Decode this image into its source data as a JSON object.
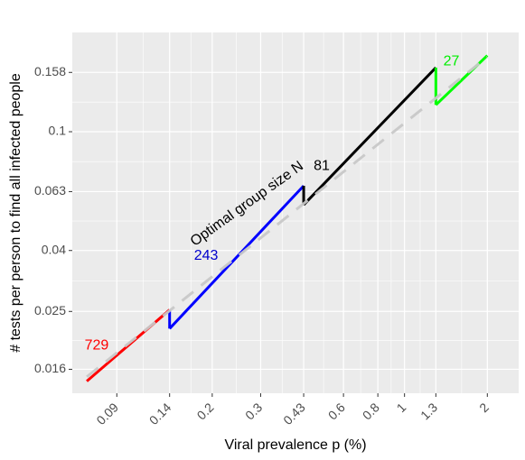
{
  "chart_data": {
    "type": "line",
    "xlabel": "Viral prevalence p (%)",
    "ylabel": "# tests per person to find all infected people",
    "x_scale": "log",
    "y_scale": "log",
    "xlim": [
      0.062,
      2.6
    ],
    "ylim": [
      0.0133,
      0.215
    ],
    "x_ticks": [
      {
        "value": 0.09,
        "label": "0.09"
      },
      {
        "value": 0.14,
        "label": "0.14"
      },
      {
        "value": 0.2,
        "label": "0.2"
      },
      {
        "value": 0.3,
        "label": "0.3"
      },
      {
        "value": 0.43,
        "label": "0.43"
      },
      {
        "value": 0.6,
        "label": "0.6"
      },
      {
        "value": 0.8,
        "label": "0.8"
      },
      {
        "value": 1,
        "label": "1"
      },
      {
        "value": 1.3,
        "label": "1.3"
      },
      {
        "value": 2,
        "label": "2"
      }
    ],
    "y_ticks": [
      {
        "value": 0.016,
        "label": "0.016"
      },
      {
        "value": 0.025,
        "label": "0.025"
      },
      {
        "value": 0.04,
        "label": "0.04"
      },
      {
        "value": 0.063,
        "label": "0.063"
      },
      {
        "value": 0.1,
        "label": "0.1"
      },
      {
        "value": 0.158,
        "label": "0.158"
      }
    ],
    "grid": true,
    "series": [
      {
        "name": "729",
        "color": "#ff0000",
        "style": "solid",
        "x": [
          0.07,
          0.14
        ],
        "y": [
          0.0146,
          0.0253
        ]
      },
      {
        "name": "243",
        "color": "#0000ff",
        "style": "solid",
        "x": [
          0.14,
          0.43
        ],
        "y": [
          0.0219,
          0.0659
        ]
      },
      {
        "name": "81",
        "color": "#000000",
        "style": "solid",
        "x": [
          0.43,
          1.3
        ],
        "y": [
          0.0569,
          0.164
        ]
      },
      {
        "name": "27",
        "color": "#00ff00",
        "style": "solid",
        "x": [
          1.3,
          2.0
        ],
        "y": [
          0.123,
          0.18
        ]
      },
      {
        "name": "",
        "color": "#c8c8c8",
        "style": "dashed",
        "x": [
          0.07,
          2.0
        ],
        "y": [
          0.0151,
          0.178
        ]
      }
    ],
    "annotations": [
      {
        "text": "729",
        "x": 0.076,
        "y": 0.0192,
        "color": "#ff0000",
        "rotate": false
      },
      {
        "text": "243",
        "x": 0.19,
        "y": 0.0384,
        "color": "#0000cd",
        "rotate": false
      },
      {
        "text": "81",
        "x": 0.5,
        "y": 0.0765,
        "color": "#000000",
        "rotate": false
      },
      {
        "text": "27",
        "x": 1.48,
        "y": 0.172,
        "color": "#00ee00",
        "rotate": false
      },
      {
        "text": "Optimal group size N",
        "x": 0.268,
        "y": 0.0572,
        "color": "#000000",
        "rotate": true
      }
    ]
  }
}
